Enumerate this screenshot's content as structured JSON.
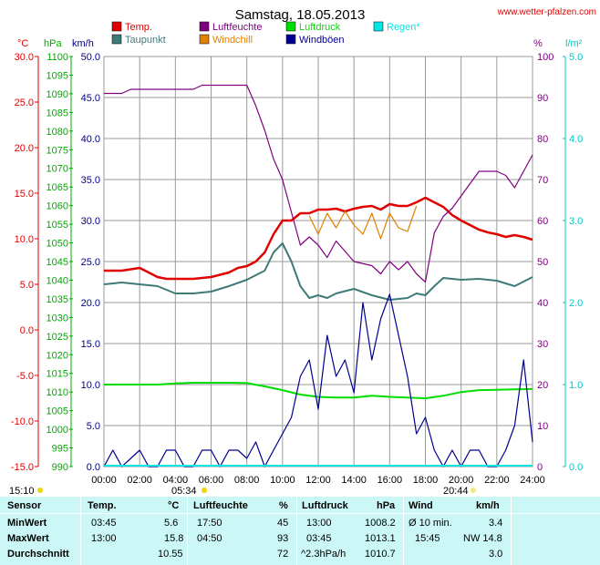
{
  "chart_data": {
    "type": "line",
    "title": "Samstag, 18.05.2013",
    "source_label": "www.wetter-pfalzen.com",
    "legend": [
      {
        "name": "Temp.",
        "color": "#e00000"
      },
      {
        "name": "Luftfeuchte",
        "color": "#800080"
      },
      {
        "name": "Luftdruck",
        "color": "#00dd00"
      },
      {
        "name": "Regen*",
        "color": "#00e5e5"
      },
      {
        "name": "Taupunkt",
        "color": "#3e7a78"
      },
      {
        "name": "Windchill",
        "color": "#e08000"
      },
      {
        "name": "Windböen",
        "color": "#000090"
      }
    ],
    "axes": {
      "temp": {
        "unit": "°C",
        "range": [
          -15,
          30
        ],
        "ticks": [
          "30.0",
          "25.0",
          "20.0",
          "15.0",
          "10.0",
          "5.0",
          "0.0",
          "-5.0",
          "-10.0",
          "-15.0"
        ],
        "color": "#e00000"
      },
      "pressure": {
        "unit": "hPa",
        "range": [
          990,
          1100
        ],
        "ticks": [
          "1100",
          "1095",
          "1090",
          "1085",
          "1080",
          "1075",
          "1070",
          "1065",
          "1060",
          "1055",
          "1050",
          "1045",
          "1040",
          "1035",
          "1030",
          "1025",
          "1020",
          "1015",
          "1010",
          "1005",
          "1000",
          "995",
          "990"
        ],
        "color": "#00aa00"
      },
      "wind": {
        "unit": "km/h",
        "range": [
          0,
          50
        ],
        "ticks": [
          "50.0",
          "45.0",
          "40.0",
          "35.0",
          "30.0",
          "25.0",
          "20.0",
          "15.0",
          "10.0",
          "5.0",
          "0.0"
        ],
        "color": "#000090"
      },
      "humidity": {
        "unit": "%",
        "range": [
          0,
          100
        ],
        "ticks": [
          "100",
          "90",
          "80",
          "70",
          "60",
          "50",
          "40",
          "30",
          "20",
          "10",
          "0"
        ],
        "color": "#800080"
      },
      "rain": {
        "unit": "l/m²",
        "range": [
          0,
          5
        ],
        "ticks": [
          "5.0",
          "4.0",
          "3.0",
          "2.0",
          "1.0",
          "0.0"
        ],
        "color": "#00c8c8"
      },
      "x": {
        "range": [
          0,
          24
        ],
        "ticks": [
          "00:00",
          "02:00",
          "04:00",
          "06:00",
          "08:00",
          "10:00",
          "12:00",
          "14:00",
          "16:00",
          "18:00",
          "20:00",
          "22:00",
          "24:00"
        ]
      }
    },
    "sun": {
      "sunrise_label": "05:34",
      "sunset_label": "20:44",
      "left_label": "15:10"
    },
    "series": [
      {
        "name": "Temp.",
        "axis": "temp",
        "color": "#e00000",
        "x": [
          0,
          1,
          2,
          2.5,
          3,
          3.5,
          4,
          5,
          6,
          7,
          7.5,
          8,
          8.5,
          9,
          9.5,
          10,
          10.5,
          11,
          11.5,
          12,
          12.5,
          13,
          13.5,
          14,
          14.5,
          15,
          15.5,
          16,
          16.5,
          17,
          17.5,
          18,
          18.5,
          19,
          19.5,
          20,
          20.5,
          21,
          21.5,
          22,
          22.5,
          23,
          23.5,
          24
        ],
        "values": [
          6.5,
          6.5,
          6.8,
          6.3,
          5.8,
          5.6,
          5.6,
          5.6,
          5.8,
          6.3,
          6.8,
          7.0,
          7.5,
          8.5,
          10.5,
          12.0,
          12.0,
          12.8,
          12.8,
          13.2,
          13.2,
          13.3,
          13.0,
          13.3,
          13.5,
          13.6,
          13.2,
          13.8,
          13.6,
          13.6,
          14.0,
          14.5,
          14.0,
          13.5,
          12.6,
          12.0,
          11.5,
          11.0,
          10.7,
          10.5,
          10.2,
          10.4,
          10.2,
          9.9
        ]
      },
      {
        "name": "Taupunkt",
        "axis": "temp",
        "color": "#3e7a78",
        "x": [
          0,
          1,
          2,
          3,
          4,
          5,
          6,
          7,
          8,
          9,
          9.5,
          10,
          10.5,
          11,
          11.5,
          12,
          12.5,
          13,
          14,
          15,
          16,
          17,
          17.5,
          18,
          18.5,
          19,
          20,
          21,
          22,
          23,
          24
        ],
        "values": [
          5.0,
          5.2,
          5.0,
          4.8,
          4.0,
          4.0,
          4.2,
          4.8,
          5.5,
          6.5,
          8.5,
          9.5,
          7.5,
          4.8,
          3.5,
          3.8,
          3.5,
          4.0,
          4.5,
          3.8,
          3.3,
          3.5,
          4.0,
          3.8,
          4.8,
          5.7,
          5.5,
          5.6,
          5.4,
          4.8,
          5.8
        ]
      },
      {
        "name": "Windchill",
        "axis": "temp",
        "color": "#e08000",
        "x": [
          11.5,
          12,
          12.5,
          13,
          13.5,
          14,
          14.5,
          15,
          15.5,
          16,
          16.5,
          17,
          17.5
        ],
        "values": [
          12.5,
          10.5,
          12.8,
          11.2,
          13.0,
          11.5,
          10.5,
          12.8,
          10.0,
          12.8,
          11.2,
          10.8,
          13.6
        ]
      },
      {
        "name": "Luftfeuchte",
        "axis": "humidity",
        "color": "#800080",
        "x": [
          0,
          1,
          1.5,
          2,
          3,
          4,
          5,
          5.5,
          6,
          7,
          8,
          8.5,
          9,
          9.5,
          10,
          10.5,
          11,
          11.5,
          12,
          12.5,
          13,
          14,
          15,
          15.5,
          16,
          16.5,
          17,
          17.5,
          18,
          18.5,
          19,
          19.5,
          20,
          20.5,
          21,
          22,
          22.5,
          23,
          23.5,
          24
        ],
        "values": [
          91,
          91,
          92,
          92,
          92,
          92,
          92,
          93,
          93,
          93,
          93,
          88,
          82,
          75,
          70,
          62,
          54,
          56,
          54,
          51,
          55,
          50,
          49,
          47,
          50,
          48,
          50,
          47,
          45,
          57,
          61,
          63,
          66,
          69,
          72,
          72,
          71,
          68,
          72,
          76
        ]
      },
      {
        "name": "Luftdruck",
        "axis": "pressure",
        "color": "#00dd00",
        "x": [
          0,
          1,
          2,
          3,
          4,
          5,
          6,
          7,
          8,
          9,
          10,
          11,
          12,
          13,
          14,
          15,
          16,
          17,
          18,
          19,
          20,
          21,
          22,
          23,
          24
        ],
        "values": [
          1012.0,
          1012.0,
          1012.0,
          1012.0,
          1012.3,
          1012.5,
          1012.5,
          1012.5,
          1012.4,
          1011.5,
          1010.5,
          1009.3,
          1008.7,
          1008.5,
          1008.5,
          1009.0,
          1008.7,
          1008.5,
          1008.3,
          1009.0,
          1010.0,
          1010.5,
          1010.6,
          1010.7,
          1010.8
        ]
      },
      {
        "name": "Windböen",
        "axis": "wind",
        "color": "#000090",
        "x": [
          0,
          0.5,
          1,
          1.5,
          2,
          2.5,
          3,
          3.5,
          4,
          4.5,
          5,
          5.5,
          6,
          6.5,
          7,
          7.5,
          8,
          8.5,
          9,
          9.5,
          10,
          10.5,
          11,
          11.5,
          12,
          12.5,
          13,
          13.5,
          14,
          14.5,
          15,
          15.5,
          16,
          16.5,
          17,
          17.5,
          18,
          18.5,
          19,
          19.5,
          20,
          20.5,
          21,
          21.5,
          22,
          22.5,
          23,
          23.5,
          24
        ],
        "values": [
          0,
          2,
          0,
          1,
          2,
          0,
          0,
          2,
          2,
          0,
          0,
          2,
          2,
          0,
          2,
          2,
          1,
          3,
          0,
          2,
          4,
          6,
          11,
          13,
          7,
          16,
          11,
          13,
          9,
          20,
          13,
          18,
          21,
          16,
          11,
          4,
          6,
          2,
          0,
          2,
          0,
          2,
          2,
          0,
          0,
          2,
          5,
          13,
          3
        ]
      }
    ]
  },
  "table": {
    "headers": {
      "sensor": "Sensor",
      "temp": "Temp.",
      "temp_unit": "°C",
      "hum": "Luftfeuchte",
      "hum_unit": "%",
      "press": "Luftdruck",
      "press_unit": "hPa",
      "wind": "Wind",
      "wind_unit": "km/h"
    },
    "rows": [
      {
        "label": "MinWert",
        "temp_time": "03:45",
        "temp_val": "5.6",
        "hum_time": "17:50",
        "hum_val": "45",
        "press_time": "13:00",
        "press_val": "1008.2",
        "wind_time": "Ø 10 min.",
        "wind_val": "3.4"
      },
      {
        "label": "MaxWert",
        "temp_time": "13:00",
        "temp_val": "15.8",
        "hum_time": "04:50",
        "hum_val": "93",
        "press_time": "03:45",
        "press_val": "1013.1",
        "wind_time": "15:45",
        "wind_val": "NW 14.8"
      },
      {
        "label": "Durchschnitt",
        "temp_time": "",
        "temp_val": "10.55",
        "hum_time": "",
        "hum_val": "72",
        "press_time": "^2.3hPa/h",
        "press_val": "1010.7",
        "wind_time": "",
        "wind_val": "3.0"
      }
    ]
  }
}
